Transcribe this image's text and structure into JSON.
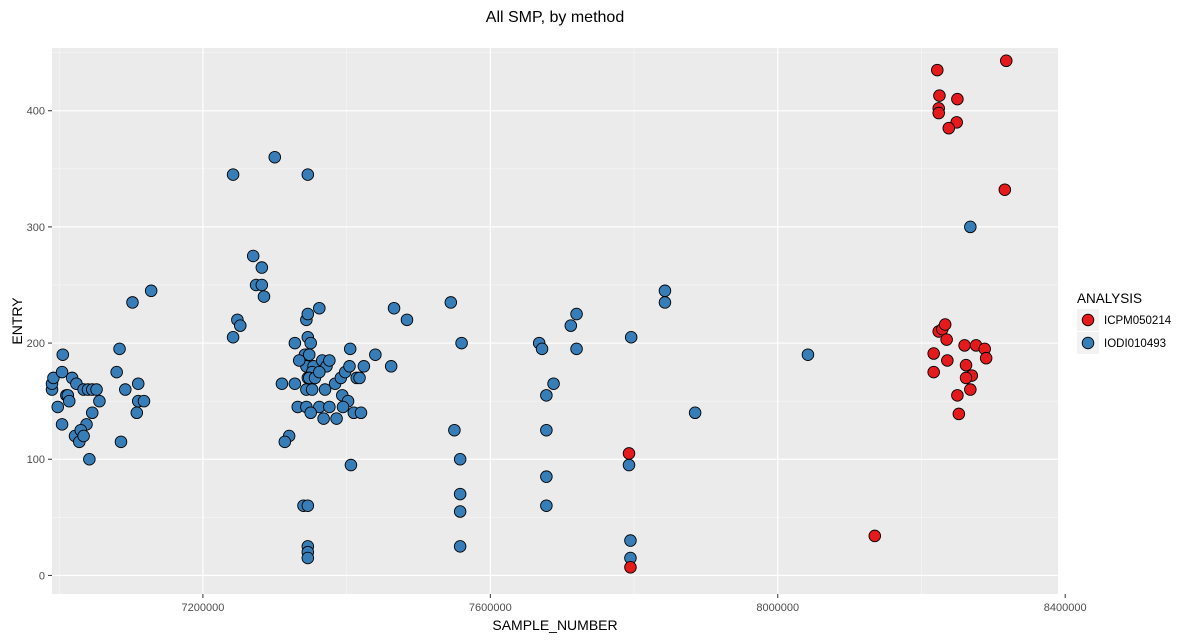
{
  "chart_data": {
    "type": "scatter",
    "title": "All SMP, by method",
    "xlabel": "SAMPLE_NUMBER",
    "ylabel": "ENTRY",
    "xlim": [
      6990000,
      8390000
    ],
    "ylim": [
      -16,
      454
    ],
    "x_ticks": [
      7200000,
      7600000,
      8000000,
      8400000
    ],
    "y_ticks": [
      0,
      100,
      200,
      300,
      400
    ],
    "grid": true,
    "legend": {
      "title": "ANALYSIS",
      "position": "right"
    },
    "series": [
      {
        "name": "ICPM050214",
        "color": "#e41a1c",
        "points": [
          [
            7793000,
            105
          ],
          [
            7795000,
            7
          ],
          [
            8135000,
            34
          ],
          [
            8222000,
            435
          ],
          [
            8225000,
            413
          ],
          [
            8224000,
            402
          ],
          [
            8224000,
            398
          ],
          [
            8250000,
            410
          ],
          [
            8249000,
            390
          ],
          [
            8238000,
            385
          ],
          [
            8318000,
            443
          ],
          [
            8316000,
            332
          ],
          [
            8224000,
            210
          ],
          [
            8229000,
            212
          ],
          [
            8233000,
            216
          ],
          [
            8235000,
            203
          ],
          [
            8217000,
            191
          ],
          [
            8217000,
            175
          ],
          [
            8236000,
            185
          ],
          [
            8260000,
            198
          ],
          [
            8270000,
            172
          ],
          [
            8268000,
            160
          ],
          [
            8276000,
            198
          ],
          [
            8288000,
            195
          ],
          [
            8290000,
            187
          ],
          [
            8250000,
            155
          ],
          [
            8262000,
            170
          ],
          [
            8252000,
            139
          ],
          [
            8262000,
            181
          ]
        ]
      },
      {
        "name": "IODI010493",
        "color": "#377eb8",
        "points": [
          [
            6990000,
            160
          ],
          [
            6990000,
            165
          ],
          [
            6992000,
            170
          ],
          [
            7005000,
            190
          ],
          [
            7004000,
            175
          ],
          [
            7010000,
            155
          ],
          [
            7012000,
            155
          ],
          [
            6998000,
            145
          ],
          [
            7004000,
            130
          ],
          [
            7014000,
            150
          ],
          [
            7018000,
            170
          ],
          [
            7024000,
            165
          ],
          [
            7034000,
            160
          ],
          [
            7040000,
            160
          ],
          [
            7046000,
            160
          ],
          [
            7052000,
            160
          ],
          [
            7038000,
            130
          ],
          [
            7046000,
            140
          ],
          [
            7056000,
            150
          ],
          [
            7022000,
            120
          ],
          [
            7028000,
            115
          ],
          [
            7030000,
            125
          ],
          [
            7034000,
            120
          ],
          [
            7042000,
            100
          ],
          [
            7084000,
            195
          ],
          [
            7080000,
            175
          ],
          [
            7086000,
            115
          ],
          [
            7092000,
            160
          ],
          [
            7102000,
            235
          ],
          [
            7108000,
            140
          ],
          [
            7110000,
            165
          ],
          [
            7110000,
            150
          ],
          [
            7118000,
            150
          ],
          [
            7128000,
            245
          ],
          [
            7242000,
            345
          ],
          [
            7300000,
            360
          ],
          [
            7346000,
            345
          ],
          [
            7270000,
            275
          ],
          [
            7282000,
            265
          ],
          [
            7274000,
            250
          ],
          [
            7282000,
            250
          ],
          [
            7285000,
            240
          ],
          [
            7248000,
            220
          ],
          [
            7252000,
            215
          ],
          [
            7242000,
            205
          ],
          [
            7328000,
            200
          ],
          [
            7344000,
            220
          ],
          [
            7346000,
            225
          ],
          [
            7362000,
            230
          ],
          [
            7346000,
            205
          ],
          [
            7350000,
            200
          ],
          [
            7345000,
            190
          ],
          [
            7342000,
            190
          ],
          [
            7348000,
            190
          ],
          [
            7344000,
            180
          ],
          [
            7354000,
            180
          ],
          [
            7352000,
            175
          ],
          [
            7366000,
            185
          ],
          [
            7372000,
            180
          ],
          [
            7376000,
            185
          ],
          [
            7346000,
            170
          ],
          [
            7348000,
            170
          ],
          [
            7356000,
            170
          ],
          [
            7362000,
            175
          ],
          [
            7384000,
            165
          ],
          [
            7392000,
            170
          ],
          [
            7398000,
            175
          ],
          [
            7404000,
            180
          ],
          [
            7405000,
            195
          ],
          [
            7414000,
            170
          ],
          [
            7418000,
            170
          ],
          [
            7424000,
            180
          ],
          [
            7440000,
            190
          ],
          [
            7462000,
            180
          ],
          [
            7466000,
            230
          ],
          [
            7484000,
            220
          ],
          [
            7310000,
            165
          ],
          [
            7328000,
            165
          ],
          [
            7334000,
            185
          ],
          [
            7344000,
            160
          ],
          [
            7352000,
            160
          ],
          [
            7370000,
            160
          ],
          [
            7332000,
            145
          ],
          [
            7344000,
            145
          ],
          [
            7362000,
            145
          ],
          [
            7368000,
            135
          ],
          [
            7350000,
            140
          ],
          [
            7376000,
            145
          ],
          [
            7386000,
            135
          ],
          [
            7394000,
            155
          ],
          [
            7402000,
            150
          ],
          [
            7395000,
            145
          ],
          [
            7410000,
            140
          ],
          [
            7420000,
            140
          ],
          [
            7320000,
            120
          ],
          [
            7314000,
            115
          ],
          [
            7406000,
            95
          ],
          [
            7340000,
            60
          ],
          [
            7346000,
            60
          ],
          [
            7346000,
            25
          ],
          [
            7346000,
            20
          ],
          [
            7346000,
            15
          ],
          [
            7545000,
            235
          ],
          [
            7560000,
            200
          ],
          [
            7550000,
            125
          ],
          [
            7558000,
            100
          ],
          [
            7558000,
            70
          ],
          [
            7558000,
            55
          ],
          [
            7558000,
            25
          ],
          [
            7668000,
            200
          ],
          [
            7672000,
            195
          ],
          [
            7678000,
            155
          ],
          [
            7678000,
            125
          ],
          [
            7678000,
            85
          ],
          [
            7678000,
            60
          ],
          [
            7688000,
            165
          ],
          [
            7712000,
            215
          ],
          [
            7720000,
            225
          ],
          [
            7720000,
            195
          ],
          [
            7796000,
            205
          ],
          [
            7793000,
            95
          ],
          [
            7795000,
            30
          ],
          [
            7795000,
            15
          ],
          [
            7843000,
            245
          ],
          [
            7843000,
            235
          ],
          [
            7885000,
            140
          ],
          [
            8042000,
            190
          ],
          [
            8268000,
            300
          ]
        ]
      }
    ]
  }
}
